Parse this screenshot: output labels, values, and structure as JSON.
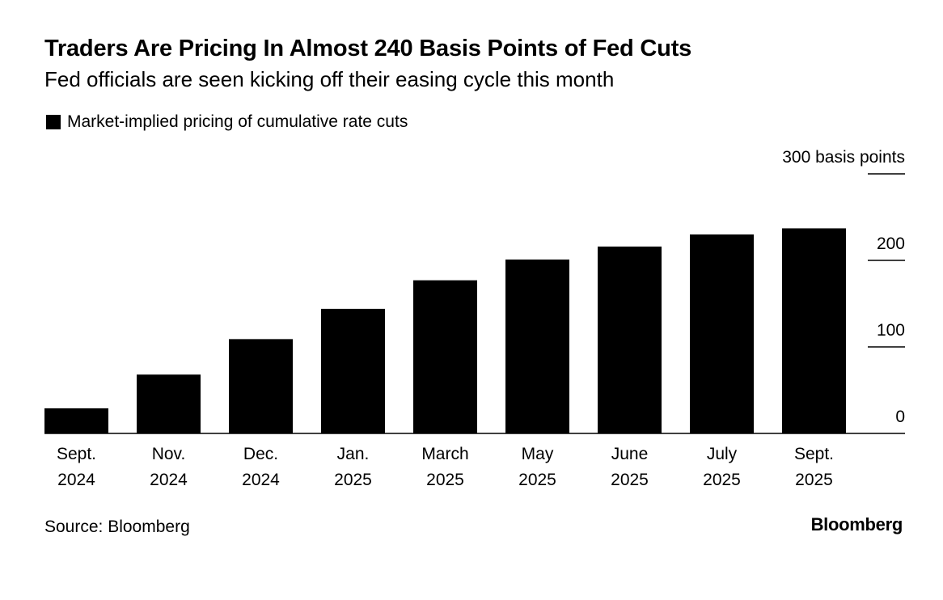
{
  "header": {
    "title": "Traders Are Pricing In Almost 240 Basis Points of Fed Cuts",
    "subtitle": "Fed officials are seen kicking off their easing cycle this month"
  },
  "legend": {
    "label": "Market-implied pricing of cumulative rate cuts",
    "color": "#000000"
  },
  "footer": {
    "source": "Source: Bloomberg",
    "logo_text": "Bloomberg"
  },
  "chart_data": {
    "type": "bar",
    "categories": [
      [
        "Sept.",
        "2024"
      ],
      [
        "Nov.",
        "2024"
      ],
      [
        "Dec.",
        "2024"
      ],
      [
        "Jan.",
        "2025"
      ],
      [
        "March",
        "2025"
      ],
      [
        "May",
        "2025"
      ],
      [
        "June",
        "2025"
      ],
      [
        "July",
        "2025"
      ],
      [
        "Sept.",
        "2025"
      ]
    ],
    "series": [
      {
        "name": "Market-implied pricing of cumulative rate cuts",
        "values": [
          29,
          68,
          109,
          144,
          177,
          201,
          216,
          230,
          237
        ],
        "color": "#000000"
      }
    ],
    "yaxis": {
      "ticks": [
        0,
        100,
        200,
        300
      ],
      "tick_labels": [
        "0",
        "100",
        "200",
        "300 basis points"
      ],
      "position": "right"
    },
    "ylim": [
      0,
      300
    ],
    "grid": false,
    "legend_placement": "top-left"
  }
}
